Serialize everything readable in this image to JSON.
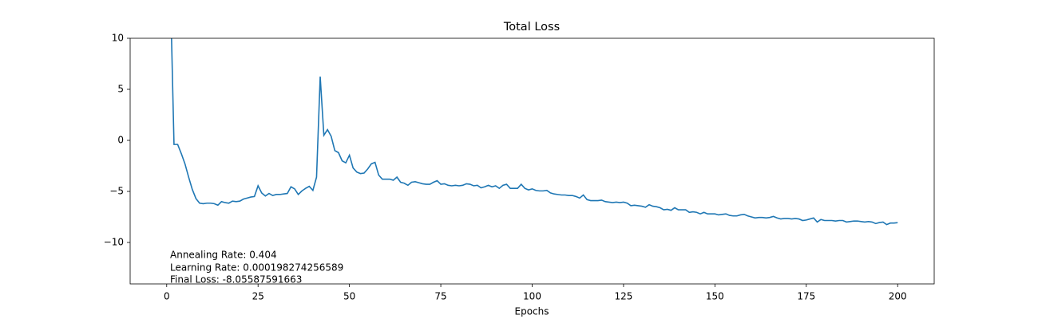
{
  "chart_data": {
    "type": "line",
    "title": "Total Loss",
    "x_label": "Epochs",
    "annotations": [
      "Annealing Rate: 0.404",
      "Learning Rate: 0.000198274256589",
      "Final Loss: -8.05587591663"
    ],
    "color": "#1f77b4",
    "xlim": [
      -10,
      210
    ],
    "xticks": [
      0,
      25,
      50,
      75,
      100,
      125,
      150,
      175,
      200
    ],
    "ylim": [
      -14.06,
      10
    ],
    "yticks": [
      {
        "value": -10,
        "label": "−10"
      },
      {
        "value": -5,
        "label": "−5"
      },
      0,
      5,
      10
    ],
    "x": [
      1,
      2,
      3,
      4,
      5,
      6,
      7,
      8,
      9,
      10,
      11,
      12,
      13,
      14,
      15,
      16,
      17,
      18,
      19,
      20,
      21,
      22,
      23,
      24,
      25,
      26,
      27,
      28,
      29,
      30,
      31,
      32,
      33,
      34,
      35,
      36,
      37,
      38,
      39,
      40,
      41,
      42,
      43,
      44,
      45,
      46,
      47,
      48,
      49,
      50,
      51,
      52,
      53,
      54,
      55,
      56,
      57,
      58,
      59,
      60,
      61,
      62,
      63,
      64,
      65,
      66,
      67,
      68,
      69,
      70,
      71,
      72,
      73,
      74,
      75,
      76,
      77,
      78,
      79,
      80,
      81,
      82,
      83,
      84,
      85,
      86,
      87,
      88,
      89,
      90,
      91,
      92,
      93,
      94,
      95,
      96,
      97,
      98,
      99,
      100,
      101,
      102,
      103,
      104,
      105,
      106,
      107,
      108,
      109,
      110,
      111,
      112,
      113,
      114,
      115,
      116,
      117,
      118,
      119,
      120,
      121,
      122,
      123,
      124,
      125,
      126,
      127,
      128,
      129,
      130,
      131,
      132,
      133,
      134,
      135,
      136,
      137,
      138,
      139,
      140,
      141,
      142,
      143,
      144,
      145,
      146,
      147,
      148,
      149,
      150,
      151,
      152,
      153,
      154,
      155,
      156,
      157,
      158,
      159,
      160,
      161,
      162,
      163,
      164,
      165,
      166,
      167,
      168,
      169,
      170,
      171,
      172,
      173,
      174,
      175,
      176,
      177,
      178,
      179,
      180,
      181,
      182,
      183,
      184,
      185,
      186,
      187,
      188,
      189,
      190,
      191,
      192,
      193,
      194,
      195,
      196,
      197,
      198,
      199,
      200
    ],
    "values": [
      15,
      -0.4,
      -0.4,
      -1.3,
      -2.3,
      -3.6,
      -4.8,
      -5.7,
      -6.15,
      -6.2,
      -6.15,
      -6.15,
      -6.2,
      -6.35,
      -6.0,
      -6.1,
      -6.15,
      -5.95,
      -6.0,
      -5.95,
      -5.75,
      -5.65,
      -5.55,
      -5.5,
      -4.45,
      -5.15,
      -5.45,
      -5.2,
      -5.4,
      -5.3,
      -5.3,
      -5.25,
      -5.2,
      -4.55,
      -4.75,
      -5.3,
      -4.95,
      -4.7,
      -4.5,
      -4.9,
      -3.6,
      6.25,
      0.5,
      1.05,
      0.4,
      -1.0,
      -1.2,
      -2.0,
      -2.2,
      -1.45,
      -2.7,
      -3.1,
      -3.25,
      -3.2,
      -2.8,
      -2.3,
      -2.15,
      -3.4,
      -3.8,
      -3.8,
      -3.8,
      -3.9,
      -3.6,
      -4.1,
      -4.2,
      -4.4,
      -4.1,
      -4.05,
      -4.15,
      -4.25,
      -4.3,
      -4.3,
      -4.1,
      -3.95,
      -4.3,
      -4.25,
      -4.4,
      -4.45,
      -4.4,
      -4.45,
      -4.4,
      -4.25,
      -4.3,
      -4.45,
      -4.4,
      -4.65,
      -4.55,
      -4.4,
      -4.55,
      -4.45,
      -4.7,
      -4.4,
      -4.3,
      -4.7,
      -4.7,
      -4.7,
      -4.3,
      -4.7,
      -4.85,
      -4.75,
      -4.9,
      -4.95,
      -4.95,
      -4.9,
      -5.15,
      -5.25,
      -5.3,
      -5.35,
      -5.35,
      -5.4,
      -5.4,
      -5.5,
      -5.65,
      -5.35,
      -5.8,
      -5.9,
      -5.9,
      -5.9,
      -5.85,
      -6.0,
      -6.05,
      -6.1,
      -6.05,
      -6.1,
      -6.05,
      -6.15,
      -6.4,
      -6.35,
      -6.4,
      -6.45,
      -6.55,
      -6.3,
      -6.45,
      -6.5,
      -6.6,
      -6.8,
      -6.75,
      -6.85,
      -6.6,
      -6.8,
      -6.8,
      -6.8,
      -7.05,
      -7.0,
      -7.05,
      -7.2,
      -7.05,
      -7.2,
      -7.2,
      -7.2,
      -7.3,
      -7.25,
      -7.2,
      -7.35,
      -7.4,
      -7.4,
      -7.3,
      -7.25,
      -7.4,
      -7.5,
      -7.6,
      -7.55,
      -7.55,
      -7.6,
      -7.55,
      -7.45,
      -7.6,
      -7.7,
      -7.65,
      -7.65,
      -7.7,
      -7.65,
      -7.7,
      -7.85,
      -7.8,
      -7.7,
      -7.6,
      -8.0,
      -7.75,
      -7.85,
      -7.85,
      -7.85,
      -7.9,
      -7.85,
      -7.85,
      -8.0,
      -7.95,
      -7.9,
      -7.9,
      -7.95,
      -8.0,
      -7.95,
      -8.0,
      -8.15,
      -8.05,
      -8.0,
      -8.25,
      -8.1,
      -8.1,
      -8.06
    ]
  }
}
